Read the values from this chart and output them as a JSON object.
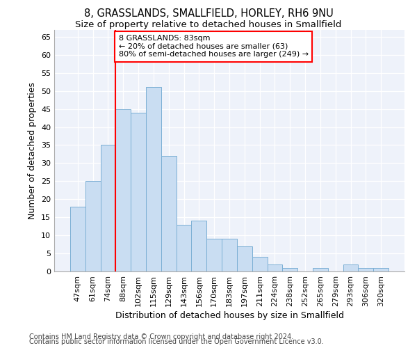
{
  "title": "8, GRASSLANDS, SMALLFIELD, HORLEY, RH6 9NU",
  "subtitle": "Size of property relative to detached houses in Smallfield",
  "xlabel": "Distribution of detached houses by size in Smallfield",
  "ylabel": "Number of detached properties",
  "categories": [
    "47sqm",
    "61sqm",
    "74sqm",
    "88sqm",
    "102sqm",
    "115sqm",
    "129sqm",
    "143sqm",
    "156sqm",
    "170sqm",
    "183sqm",
    "197sqm",
    "211sqm",
    "224sqm",
    "238sqm",
    "252sqm",
    "265sqm",
    "279sqm",
    "293sqm",
    "306sqm",
    "320sqm"
  ],
  "values": [
    18,
    25,
    35,
    45,
    44,
    51,
    32,
    13,
    14,
    9,
    9,
    7,
    4,
    2,
    1,
    0,
    1,
    0,
    2,
    1,
    1
  ],
  "bar_color": "#c9ddf2",
  "bar_edge_color": "#7bafd4",
  "vline_x": 2.5,
  "vline_color": "red",
  "annotation_text": "8 GRASSLANDS: 83sqm\n← 20% of detached houses are smaller (63)\n80% of semi-detached houses are larger (249) →",
  "annotation_box_color": "white",
  "annotation_box_edge_color": "red",
  "ylim": [
    0,
    67
  ],
  "yticks": [
    0,
    5,
    10,
    15,
    20,
    25,
    30,
    35,
    40,
    45,
    50,
    55,
    60,
    65
  ],
  "footer_line1": "Contains HM Land Registry data © Crown copyright and database right 2024.",
  "footer_line2": "Contains public sector information licensed under the Open Government Licence v3.0.",
  "plot_bg_color": "#eef2fa",
  "title_fontsize": 10.5,
  "subtitle_fontsize": 9.5,
  "label_fontsize": 9,
  "tick_fontsize": 8,
  "footer_fontsize": 7
}
